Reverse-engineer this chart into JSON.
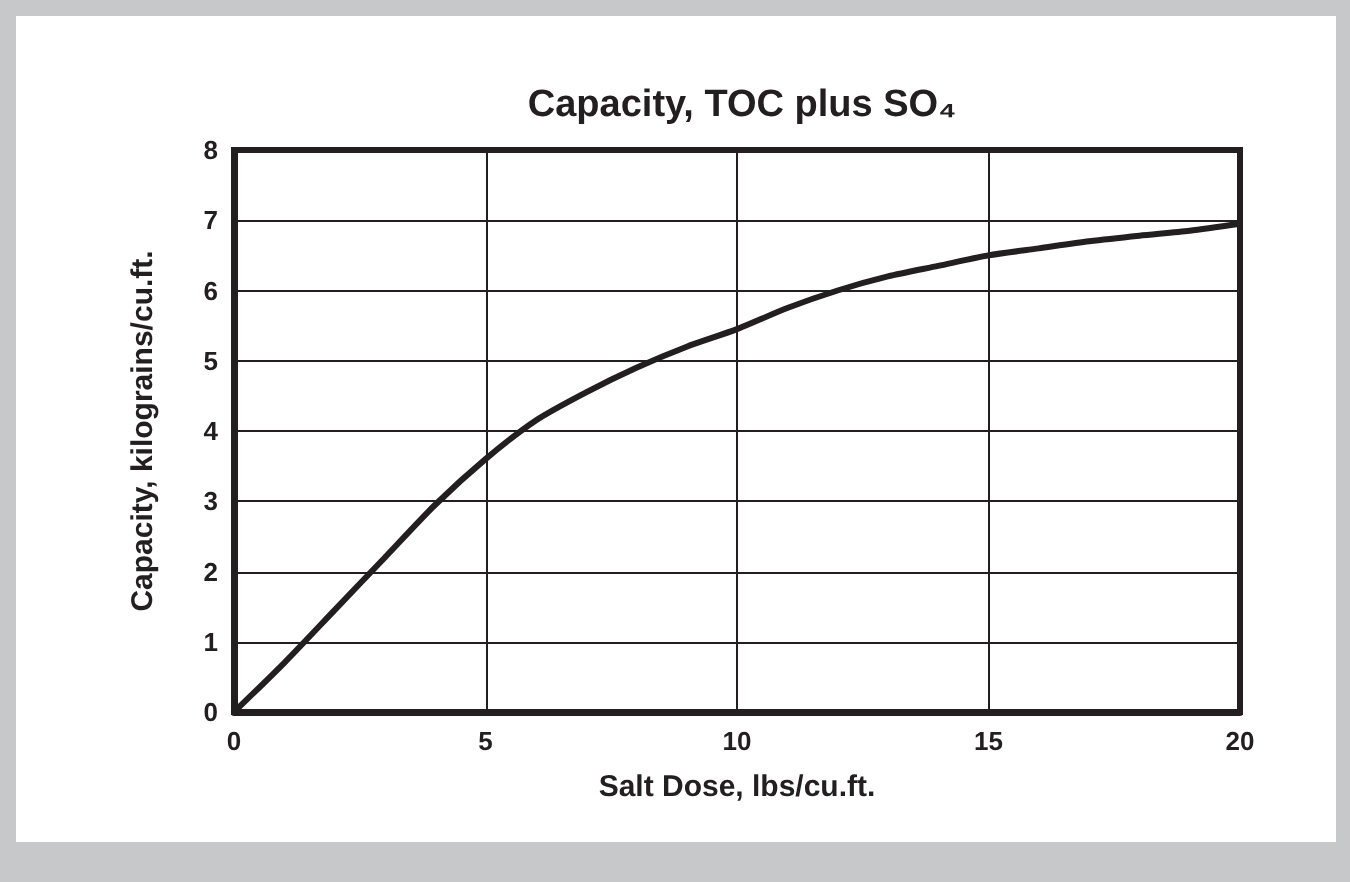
{
  "chart_data": {
    "type": "line",
    "title": "Capacity, TOC plus SO₄",
    "xlabel": "Salt Dose, lbs/cu.ft.",
    "ylabel": "Capacity, kilograins/cu.ft.",
    "x": [
      0,
      1,
      2,
      3,
      4,
      5,
      6,
      7,
      8,
      9,
      10,
      11,
      12,
      13,
      14,
      15,
      16,
      17,
      18,
      19,
      20
    ],
    "series": [
      {
        "color": "#231f20",
        "values": [
          0,
          0.7,
          1.45,
          2.2,
          2.95,
          3.6,
          4.15,
          4.55,
          4.9,
          5.2,
          5.45,
          5.75,
          6.0,
          6.2,
          6.35,
          6.5,
          6.6,
          6.7,
          6.78,
          6.85,
          6.95
        ]
      }
    ],
    "xlim": [
      0,
      20
    ],
    "xticks": [
      0,
      5,
      10,
      15,
      20
    ],
    "ylim": [
      0,
      8
    ],
    "yticks": [
      0,
      1,
      2,
      3,
      4,
      5,
      6,
      7,
      8
    ],
    "grid": true,
    "marker": "none",
    "line_style": "solid"
  }
}
